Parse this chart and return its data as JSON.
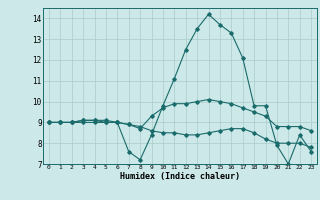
{
  "title": "",
  "xlabel": "Humidex (Indice chaleur)",
  "background_color": "#cce8e8",
  "grid_color": "#aacccc",
  "line_color": "#1a6b6b",
  "xlim": [
    -0.5,
    23.5
  ],
  "ylim": [
    7,
    14.5
  ],
  "yticks": [
    7,
    8,
    9,
    10,
    11,
    12,
    13,
    14
  ],
  "xticks": [
    0,
    1,
    2,
    3,
    4,
    5,
    6,
    7,
    8,
    9,
    10,
    11,
    12,
    13,
    14,
    15,
    16,
    17,
    18,
    19,
    20,
    21,
    22,
    23
  ],
  "line1_x": [
    0,
    1,
    2,
    3,
    4,
    5,
    6,
    7,
    8,
    9,
    10,
    11,
    12,
    13,
    14,
    15,
    16,
    17,
    18,
    19,
    20,
    21,
    22,
    23
  ],
  "line1_y": [
    9.0,
    9.0,
    9.0,
    9.1,
    9.1,
    9.1,
    9.0,
    7.6,
    7.2,
    8.4,
    9.8,
    11.1,
    12.5,
    13.5,
    14.2,
    13.7,
    13.3,
    12.1,
    9.8,
    9.8,
    7.9,
    7.0,
    8.4,
    7.6
  ],
  "line2_x": [
    0,
    1,
    2,
    3,
    4,
    5,
    6,
    7,
    8,
    9,
    10,
    11,
    12,
    13,
    14,
    15,
    16,
    17,
    18,
    19,
    20,
    21,
    22,
    23
  ],
  "line2_y": [
    9.0,
    9.0,
    9.0,
    9.0,
    9.0,
    9.0,
    9.0,
    8.9,
    8.8,
    8.6,
    8.5,
    8.5,
    8.4,
    8.4,
    8.5,
    8.6,
    8.7,
    8.7,
    8.5,
    8.2,
    8.0,
    8.0,
    8.0,
    7.8
  ],
  "line3_x": [
    0,
    1,
    2,
    3,
    4,
    5,
    6,
    7,
    8,
    9,
    10,
    11,
    12,
    13,
    14,
    15,
    16,
    17,
    18,
    19,
    20,
    21,
    22,
    23
  ],
  "line3_y": [
    9.0,
    9.0,
    9.0,
    9.1,
    9.1,
    9.0,
    9.0,
    8.9,
    8.7,
    9.3,
    9.7,
    9.9,
    9.9,
    10.0,
    10.1,
    10.0,
    9.9,
    9.7,
    9.5,
    9.3,
    8.8,
    8.8,
    8.8,
    8.6
  ]
}
